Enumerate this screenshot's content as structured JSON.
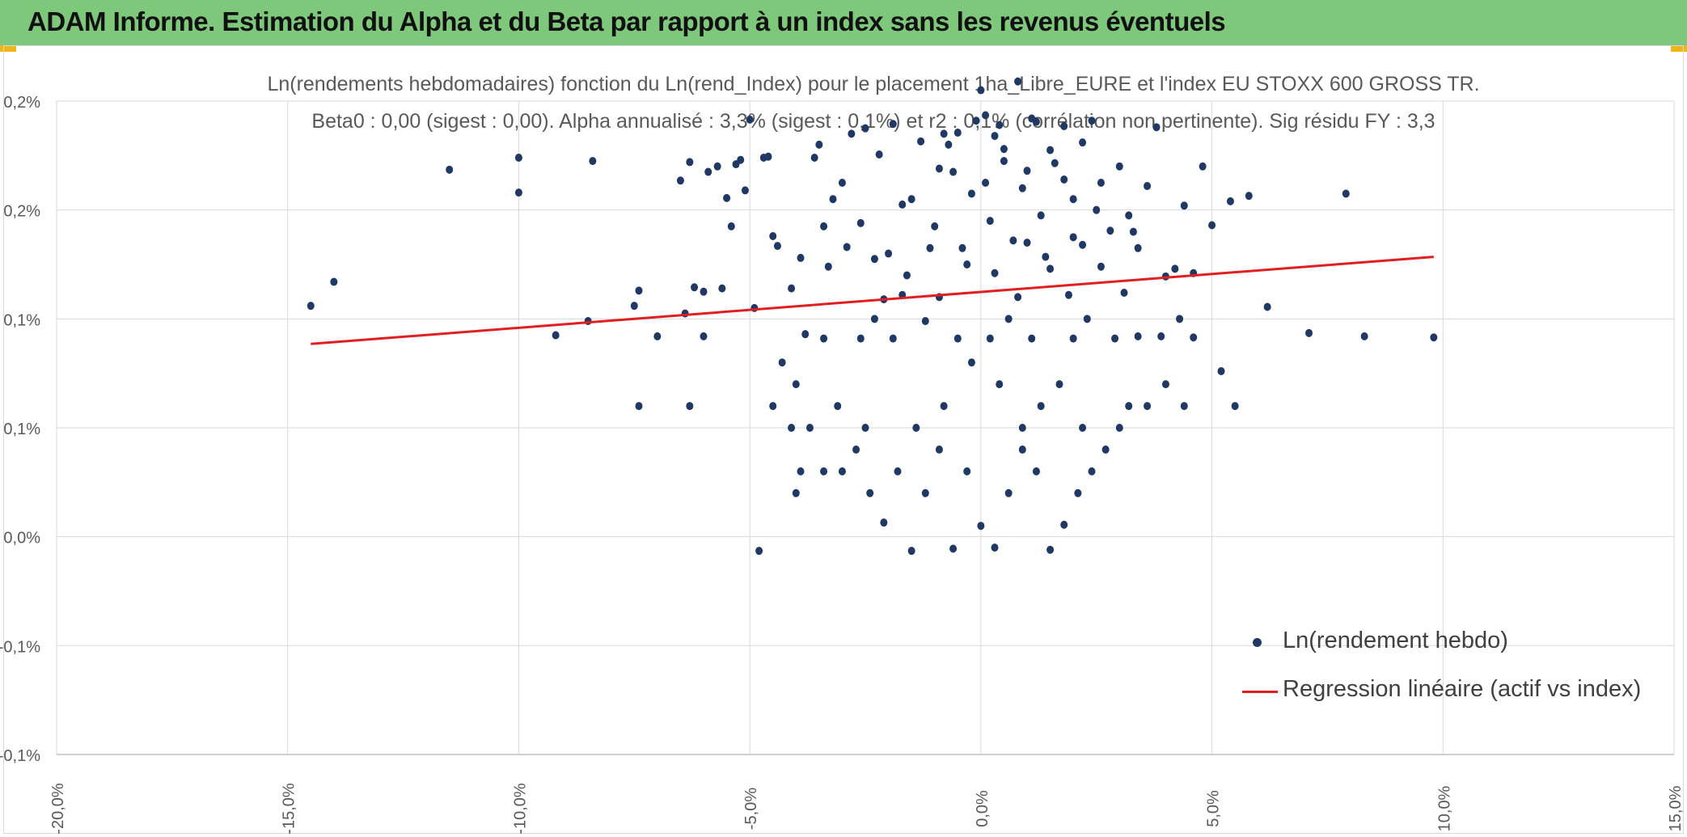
{
  "header": {
    "title": "ADAM Informe. Estimation du Alpha et du Beta par rapport à un index sans les revenus éventuels"
  },
  "colors": {
    "header_bg": "#7dc87a",
    "accent": "#f2b517",
    "points": "#1f3864",
    "regression": "#e02020",
    "grid": "#d9d9d9"
  },
  "chart_data": {
    "type": "scatter",
    "title": "Ln(rendements hebdomadaires) fonction du Ln(rend_Index) pour le placement 1ha_Libre_EURE et l'index EU STOXX 600 GROSS TR.",
    "subtitle": "Beta0 : 0,00 (sigest : 0,00). Alpha annualisé : 3,3% (sigest : 0,1%) et r2 : 0,1% (corrélation non pertinente). Sig résidu FY : 3,3",
    "xlim": [
      -20,
      15
    ],
    "ylim": [
      -0.3,
      0.3
    ],
    "x_ticks": [
      "-20,0%",
      "-15,0%",
      "-10,0%",
      "-5,0%",
      "0,0%",
      "5,0%",
      "10,0%",
      "15,0%"
    ],
    "y_ticks": [
      "-0,1%",
      "-0,1%",
      "0,0%",
      "0,1%",
      "0,1%",
      "0,2%",
      "0,2%"
    ],
    "grid": true,
    "legend_position": "bottom-right",
    "series": [
      {
        "name": "Ln(rendement hebdo)",
        "kind": "scatter",
        "points": [
          [
            -14.5,
            0.112
          ],
          [
            -14.0,
            0.134
          ],
          [
            -11.5,
            0.237
          ],
          [
            -10.0,
            0.248
          ],
          [
            -10.0,
            0.216
          ],
          [
            -9.2,
            0.085
          ],
          [
            -8.5,
            0.098
          ],
          [
            -8.4,
            0.245
          ],
          [
            -7.5,
            0.112
          ],
          [
            -7.4,
            0.126
          ],
          [
            -7.4,
            0.02
          ],
          [
            -7.0,
            0.084
          ],
          [
            -6.5,
            0.227
          ],
          [
            -6.4,
            0.105
          ],
          [
            -6.3,
            0.244
          ],
          [
            -6.3,
            0.02
          ],
          [
            -6.2,
            0.129
          ],
          [
            -6.0,
            0.084
          ],
          [
            -6.0,
            0.125
          ],
          [
            -5.9,
            0.235
          ],
          [
            -5.7,
            0.24
          ],
          [
            -5.6,
            0.128
          ],
          [
            -5.5,
            0.211
          ],
          [
            -5.4,
            0.185
          ],
          [
            -5.3,
            0.242
          ],
          [
            -5.2,
            0.246
          ],
          [
            -5.1,
            0.218
          ],
          [
            -5.0,
            0.283
          ],
          [
            -4.9,
            0.11
          ],
          [
            -4.8,
            -0.113
          ],
          [
            -4.7,
            0.248
          ],
          [
            -4.6,
            0.249
          ],
          [
            -4.5,
            0.02
          ],
          [
            -4.5,
            0.176
          ],
          [
            -4.4,
            0.167
          ],
          [
            -4.3,
            0.06
          ],
          [
            -4.1,
            0.128
          ],
          [
            -4.0,
            0.04
          ],
          [
            -3.9,
            0.156
          ],
          [
            -3.8,
            0.086
          ],
          [
            -3.6,
            0.248
          ],
          [
            -3.5,
            0.26
          ],
          [
            -3.4,
            0.185
          ],
          [
            -3.4,
            0.082
          ],
          [
            -3.3,
            0.148
          ],
          [
            -3.2,
            0.21
          ],
          [
            -3.0,
            0.225
          ],
          [
            -2.9,
            0.166
          ],
          [
            -2.8,
            0.27
          ],
          [
            -2.6,
            0.188
          ],
          [
            -2.5,
            0.275
          ],
          [
            -2.3,
            0.155
          ],
          [
            -2.2,
            0.251
          ],
          [
            -2.1,
            0.118
          ],
          [
            -1.9,
            0.279
          ],
          [
            -1.7,
            0.122
          ],
          [
            -1.5,
            0.21
          ],
          [
            -1.3,
            0.263
          ],
          [
            -1.1,
            0.165
          ],
          [
            -0.9,
            0.238
          ],
          [
            -0.7,
            0.26
          ],
          [
            -0.5,
            0.271
          ],
          [
            -0.3,
            0.15
          ],
          [
            -0.1,
            0.282
          ],
          [
            0.0,
            0.31
          ],
          [
            0.1,
            0.225
          ],
          [
            0.3,
            0.268
          ],
          [
            0.5,
            0.256
          ],
          [
            0.7,
            0.172
          ],
          [
            0.8,
            0.318
          ],
          [
            1.0,
            0.236
          ],
          [
            1.2,
            0.281
          ],
          [
            1.4,
            0.157
          ],
          [
            1.6,
            0.243
          ],
          [
            1.8,
            0.277
          ],
          [
            2.0,
            0.21
          ],
          [
            2.2,
            0.168
          ],
          [
            2.4,
            0.282
          ],
          [
            2.6,
            0.225
          ],
          [
            2.8,
            0.181
          ],
          [
            3.0,
            0.24
          ],
          [
            3.2,
            0.195
          ],
          [
            3.4,
            0.165
          ],
          [
            3.6,
            0.222
          ],
          [
            3.8,
            0.276
          ],
          [
            4.0,
            0.139
          ],
          [
            4.2,
            0.146
          ],
          [
            4.4,
            0.204
          ],
          [
            4.6,
            0.142
          ],
          [
            4.8,
            0.24
          ],
          [
            5.0,
            0.186
          ],
          [
            5.2,
            0.052
          ],
          [
            5.4,
            0.208
          ],
          [
            5.5,
            0.02
          ],
          [
            5.8,
            0.213
          ],
          [
            6.2,
            0.111
          ],
          [
            7.1,
            0.087
          ],
          [
            7.9,
            0.215
          ],
          [
            8.3,
            0.084
          ],
          [
            9.8,
            0.083
          ],
          [
            -3.0,
            -0.04
          ],
          [
            -2.7,
            -0.02
          ],
          [
            -2.4,
            -0.06
          ],
          [
            -2.1,
            -0.087
          ],
          [
            -1.8,
            -0.04
          ],
          [
            -1.5,
            -0.113
          ],
          [
            -1.2,
            -0.06
          ],
          [
            -0.9,
            -0.02
          ],
          [
            -0.6,
            -0.111
          ],
          [
            -0.3,
            -0.04
          ],
          [
            0.0,
            -0.09
          ],
          [
            0.3,
            -0.11
          ],
          [
            0.6,
            -0.06
          ],
          [
            0.9,
            -0.02
          ],
          [
            1.2,
            -0.04
          ],
          [
            1.5,
            -0.112
          ],
          [
            1.8,
            -0.089
          ],
          [
            2.1,
            -0.06
          ],
          [
            2.4,
            -0.04
          ],
          [
            2.7,
            -0.02
          ],
          [
            3.0,
            0.0
          ],
          [
            3.2,
            0.02
          ],
          [
            3.6,
            0.02
          ],
          [
            4.0,
            0.04
          ],
          [
            4.4,
            0.02
          ],
          [
            -3.9,
            -0.04
          ],
          [
            -4.0,
            -0.06
          ],
          [
            -3.4,
            -0.04
          ],
          [
            -4.1,
            0.0
          ],
          [
            -3.7,
            0.0
          ],
          [
            -2.5,
            0.0
          ],
          [
            -3.1,
            0.02
          ],
          [
            -1.4,
            0.0
          ],
          [
            0.9,
            0.0
          ],
          [
            2.2,
            0.0
          ],
          [
            -0.8,
            0.02
          ],
          [
            0.4,
            0.04
          ],
          [
            1.3,
            0.02
          ],
          [
            -0.2,
            0.06
          ],
          [
            1.7,
            0.04
          ],
          [
            -1.9,
            0.082
          ],
          [
            -0.5,
            0.082
          ],
          [
            0.2,
            0.082
          ],
          [
            1.1,
            0.082
          ],
          [
            2.0,
            0.082
          ],
          [
            2.9,
            0.082
          ],
          [
            3.4,
            0.084
          ],
          [
            -2.6,
            0.082
          ],
          [
            3.9,
            0.084
          ],
          [
            4.6,
            0.083
          ],
          [
            -1.2,
            0.098
          ],
          [
            0.6,
            0.1
          ],
          [
            2.3,
            0.1
          ],
          [
            -2.3,
            0.1
          ],
          [
            4.3,
            0.1
          ],
          [
            -0.9,
            0.12
          ],
          [
            0.8,
            0.12
          ],
          [
            1.9,
            0.122
          ],
          [
            3.1,
            0.124
          ],
          [
            -1.6,
            0.14
          ],
          [
            0.3,
            0.142
          ],
          [
            1.5,
            0.146
          ],
          [
            2.6,
            0.148
          ],
          [
            -2.0,
            0.16
          ],
          [
            -0.4,
            0.165
          ],
          [
            1.0,
            0.17
          ],
          [
            2.0,
            0.175
          ],
          [
            3.3,
            0.18
          ],
          [
            -1.0,
            0.185
          ],
          [
            0.2,
            0.19
          ],
          [
            1.3,
            0.195
          ],
          [
            2.5,
            0.2
          ],
          [
            -1.7,
            0.205
          ],
          [
            -0.2,
            0.215
          ],
          [
            0.9,
            0.22
          ],
          [
            1.8,
            0.228
          ],
          [
            -0.6,
            0.235
          ],
          [
            0.5,
            0.245
          ],
          [
            1.5,
            0.255
          ],
          [
            2.2,
            0.262
          ],
          [
            -0.8,
            0.27
          ],
          [
            0.4,
            0.278
          ],
          [
            1.1,
            0.284
          ],
          [
            0.1,
            0.287
          ]
        ]
      },
      {
        "name": "Regression linéaire (actif vs index)",
        "kind": "line",
        "points": [
          [
            -14.5,
            0.077
          ],
          [
            9.8,
            0.157
          ]
        ]
      }
    ]
  }
}
